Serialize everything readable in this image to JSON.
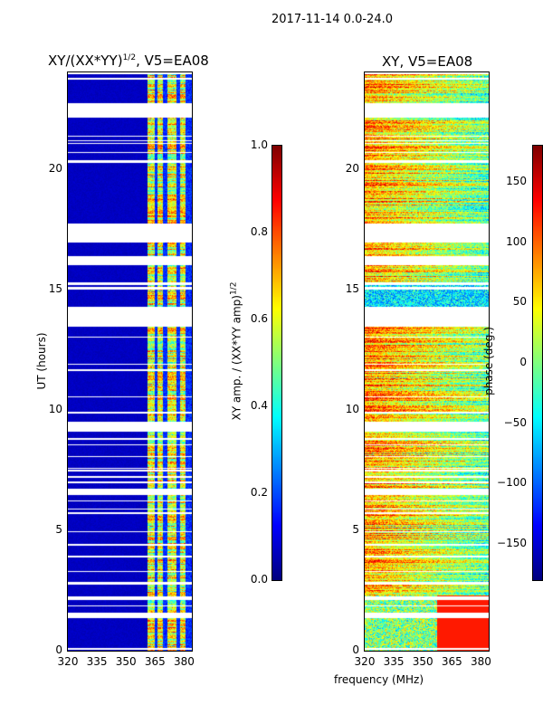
{
  "suptitle": "2017-11-14 0.0-24.0",
  "chart_data": [
    {
      "type": "heatmap",
      "title_main": "XY/(XX*YY)",
      "title_sup": "1/2",
      "title_tail": ", V5=EA08",
      "xlabel": "",
      "ylabel": "UT (hours)",
      "xlim": [
        320,
        384
      ],
      "ylim": [
        0,
        24
      ],
      "xticks": [
        "320",
        "335",
        "350",
        "365",
        "380"
      ],
      "xtick_values": [
        320,
        335,
        350,
        365,
        380
      ],
      "yticks": [
        "0",
        "5",
        "10",
        "15",
        "20"
      ],
      "ytick_values": [
        0,
        5,
        10,
        15,
        20
      ],
      "colormap": "jet",
      "colorbar": {
        "label_main": "XY amp. / (XX*YY amp)",
        "label_sup": "1/2",
        "range": [
          0,
          1
        ],
        "ticks": [
          "0.0",
          "0.2",
          "0.4",
          "0.6",
          "0.8",
          "1.0"
        ],
        "tick_values": [
          0,
          0.2,
          0.4,
          0.6,
          0.8,
          1.0
        ]
      },
      "note": "low amplitude (~0.05) below 361 MHz; bands of 0.3-0.9 between 361 and 380 MHz",
      "flagged_hours": [
        [
          22.2,
          22.7
        ],
        [
          17.0,
          17.7
        ],
        [
          16.1,
          16.35
        ],
        [
          13.5,
          14.2
        ],
        [
          9.15,
          9.5
        ],
        [
          6.5,
          6.7
        ],
        [
          1.4,
          1.55
        ]
      ]
    },
    {
      "type": "heatmap",
      "title": "XY, V5=EA08",
      "xlabel": "frequency (MHz)",
      "ylabel": "",
      "xlim": [
        320,
        384
      ],
      "ylim": [
        0,
        24
      ],
      "xticks": [
        "320",
        "335",
        "350",
        "365",
        "380"
      ],
      "xtick_values": [
        320,
        335,
        350,
        365,
        380
      ],
      "yticks": [
        "0",
        "5",
        "10",
        "15",
        "20"
      ],
      "ytick_values": [
        0,
        5,
        10,
        15,
        20
      ],
      "colormap": "jet",
      "colorbar": {
        "label": "phase (deg.)",
        "range": [
          -180,
          180
        ],
        "ticks": [
          "−150",
          "−100",
          "−50",
          "0",
          "50",
          "100",
          "150"
        ],
        "tick_values": [
          -150,
          -100,
          -50,
          0,
          50,
          100,
          150
        ]
      },
      "flagged_hours": [
        [
          22.2,
          22.7
        ],
        [
          17.0,
          17.7
        ],
        [
          16.1,
          16.35
        ],
        [
          13.5,
          14.2
        ],
        [
          9.15,
          9.5
        ],
        [
          6.5,
          6.7
        ],
        [
          1.4,
          1.55
        ]
      ]
    }
  ]
}
